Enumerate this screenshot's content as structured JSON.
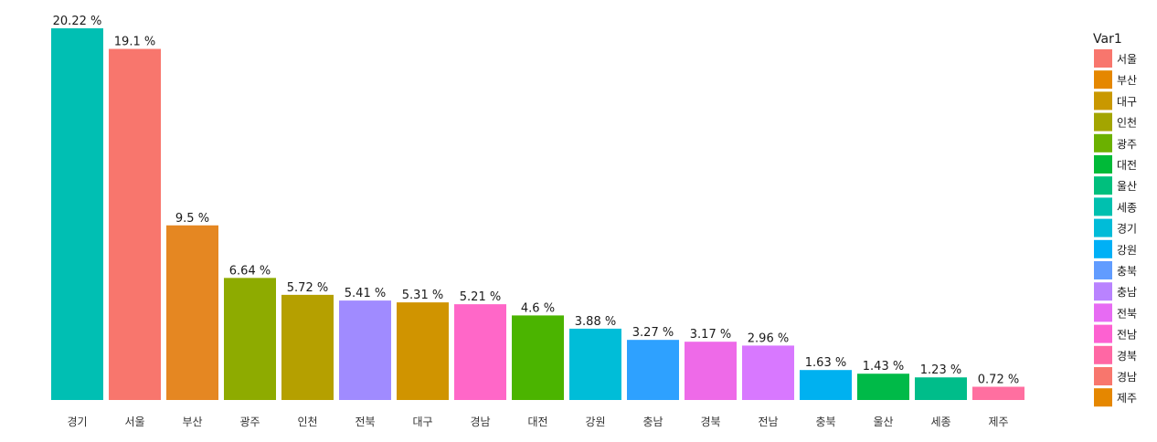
{
  "chart_data": {
    "type": "bar",
    "categories": [
      "경기",
      "서울",
      "부산",
      "광주",
      "인천",
      "전북",
      "대구",
      "경남",
      "대전",
      "강원",
      "충남",
      "경북",
      "전남",
      "충북",
      "울산",
      "세종",
      "제주"
    ],
    "values": [
      20.22,
      19.1,
      9.5,
      6.64,
      5.72,
      5.41,
      5.31,
      5.21,
      4.6,
      3.88,
      3.27,
      3.17,
      2.96,
      1.63,
      1.43,
      1.23,
      0.72
    ],
    "labels": [
      "20.22 %",
      "19.1 %",
      "9.5 %",
      "6.64 %",
      "5.72 %",
      "5.41 %",
      "5.31 %",
      "5.21 %",
      "4.6 %",
      "3.88 %",
      "3.27 %",
      "3.17 %",
      "2.96 %",
      "1.63 %",
      "1.43 %",
      "1.23 %",
      "0.72 %"
    ],
    "ylim": [
      0,
      20.22
    ],
    "grid": false,
    "legend": {
      "title": "Var1",
      "position": "right",
      "items": [
        {
          "label": "서울",
          "color": "#F8766D"
        },
        {
          "label": "부산",
          "color": "#E58700"
        },
        {
          "label": "대구",
          "color": "#C99800"
        },
        {
          "label": "인천",
          "color": "#A3A500"
        },
        {
          "label": "광주",
          "color": "#6BB100"
        },
        {
          "label": "대전",
          "color": "#00BA38"
        },
        {
          "label": "울산",
          "color": "#00BF7D"
        },
        {
          "label": "세종",
          "color": "#00C0AF"
        },
        {
          "label": "경기",
          "color": "#00BCD8"
        },
        {
          "label": "강원",
          "color": "#00B0F6"
        },
        {
          "label": "충북",
          "color": "#619CFF"
        },
        {
          "label": "충남",
          "color": "#B983FF"
        },
        {
          "label": "전북",
          "color": "#E76BF3"
        },
        {
          "label": "전남",
          "color": "#FD61D1"
        },
        {
          "label": "경북",
          "color": "#FF67A4"
        },
        {
          "label": "경남",
          "color": "#F8766D"
        },
        {
          "label": "제주",
          "color": "#E58700"
        }
      ]
    },
    "bar_colors": {
      "경기": "#00BFB3",
      "서울": "#F8766D",
      "부산": "#E58722",
      "광주": "#8EAB00",
      "인천": "#B5A000",
      "전북": "#A08BFF",
      "대구": "#D09400",
      "경남": "#FF67C8",
      "대전": "#4BB400",
      "강원": "#00BDD8",
      "충남": "#2EA1FF",
      "경북": "#EE6AE8",
      "전남": "#D878FF",
      "충북": "#00B1F0",
      "울산": "#00BA48",
      "세종": "#00BD8A",
      "제주": "#FF6FA0"
    }
  }
}
